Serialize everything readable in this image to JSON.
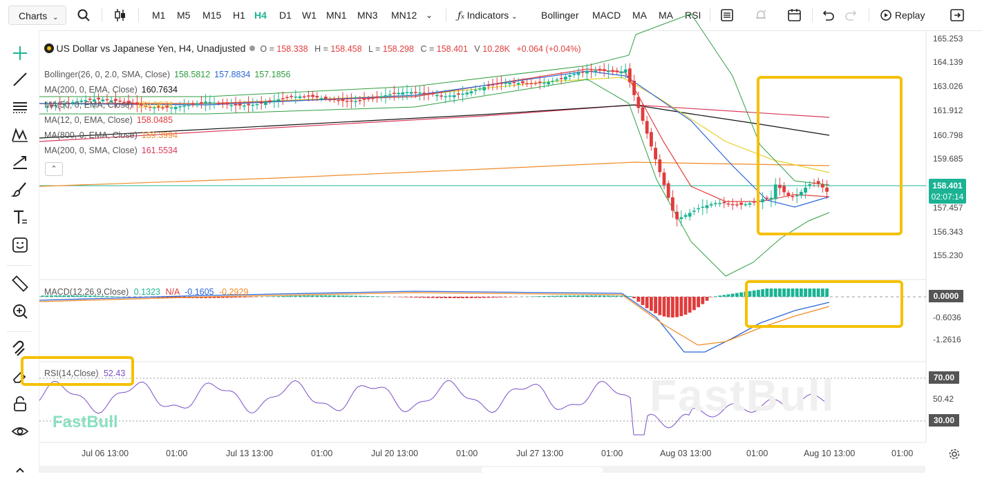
{
  "toolbar": {
    "charts_label": "Charts",
    "intervals": [
      "M1",
      "M5",
      "M15",
      "H1",
      "H4",
      "D1",
      "W1",
      "MN1",
      "MN3",
      "MN12"
    ],
    "active_interval": "H4",
    "indicators_label": "Indicators",
    "quick_indicators": [
      "Bollinger",
      "MACD",
      "MA",
      "MA",
      "RSI"
    ],
    "replay_label": "Replay"
  },
  "main_legend": {
    "title": "US Dollar vs Japanese Yen, H4, Unadjusted",
    "o_label": "O =",
    "o_value": "158.338",
    "h_label": "H =",
    "h_value": "158.458",
    "l_label": "L =",
    "l_value": "158.298",
    "c_label": "C =",
    "c_value": "158.401",
    "v_label": "V",
    "v_value": "10.28K",
    "change": "+0.064 (+0.04%)"
  },
  "indicators": [
    {
      "label": "Bollinger(26, 0, 2.0, SMA, Close)",
      "values": [
        "158.5812",
        "157.8834",
        "157.1856"
      ],
      "colors": [
        "#2e9e3e",
        "#2a66d8",
        "#2e9e3e"
      ]
    },
    {
      "label": "MA(200, 0, EMA, Close)",
      "values": [
        "160.7634"
      ],
      "colors": [
        "#111111"
      ]
    },
    {
      "label": "MA(50, 0, EMA, Close)",
      "values": [
        "159.0674"
      ],
      "colors": [
        "#e6cf2a"
      ]
    },
    {
      "label": "MA(12, 0, EMA, Close)",
      "values": [
        "158.0485"
      ],
      "colors": [
        "#e03c3c"
      ]
    },
    {
      "label": "MA(800, 0, EMA, Close)",
      "values": [
        "159.3994"
      ],
      "colors": [
        "#f08a24"
      ]
    },
    {
      "label": "MA(200, 0, SMA, Close)",
      "values": [
        "161.5534"
      ],
      "colors": [
        "#d83a5a"
      ]
    }
  ],
  "price_axis": [
    "165.253",
    "164.139",
    "163.026",
    "161.912",
    "160.798",
    "159.685",
    "157.457",
    "156.343",
    "155.230"
  ],
  "price_tag": {
    "price": "158.401",
    "countdown": "02:07:14"
  },
  "macd": {
    "label": "MACD(12,26,9,Close)",
    "values": [
      "0.1323",
      "N/A",
      "-0.1605",
      "-0.2929"
    ],
    "colors": [
      "#1bb394",
      "#e03c3c",
      "#2a66d8",
      "#f08a24"
    ],
    "axis": [
      "0.0000",
      "-0.6036",
      "-1.2616"
    ]
  },
  "rsi": {
    "label": "RSI(14,Close)",
    "value": "52.43",
    "axis": [
      "70.00",
      "50.42",
      "30.00"
    ]
  },
  "time_axis": [
    "Jul 06 13:00",
    "01:00",
    "Jul 13 13:00",
    "01:00",
    "Jul 20 13:00",
    "01:00",
    "Jul 27 13:00",
    "01:00",
    "Aug 03 13:00",
    "01:00",
    "Aug 10 13:00",
    "01:00"
  ],
  "watermark": "FastBull",
  "colors": {
    "accent": "#1bb394",
    "up": "#1bb394",
    "down": "#e03c3c",
    "highlight": "#f5c000"
  }
}
